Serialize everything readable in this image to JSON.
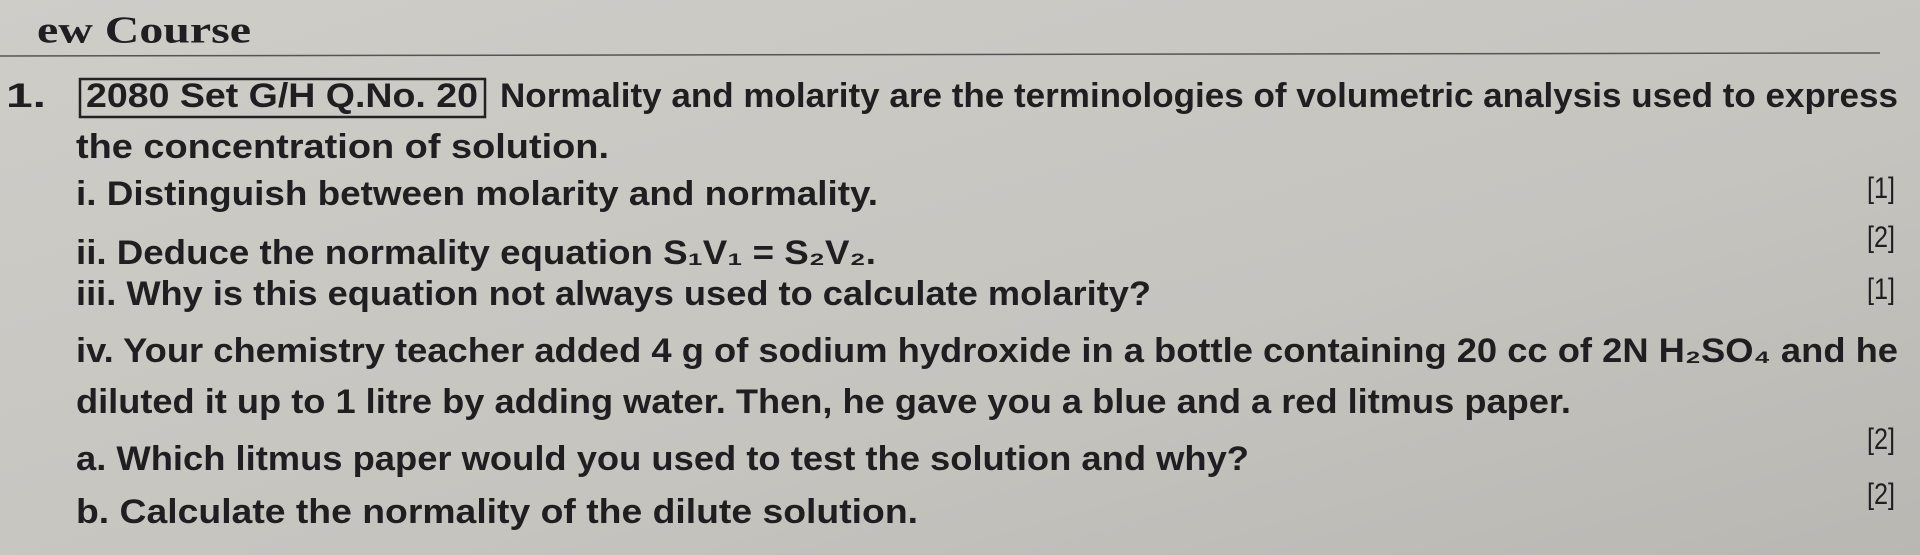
{
  "header": {
    "title": "ew Course"
  },
  "question": {
    "number": "1.",
    "tag": "2080 Set G/H Q.No. 20",
    "stem": [
      "Normality and molarity are the terminologies of volumetric analysis used to express",
      "the concentration of solution."
    ],
    "parts": [
      {
        "lines": [
          "i. Distinguish between molarity and normality."
        ],
        "marks": "[1]"
      },
      {
        "lines": [
          "ii. Deduce the normality equation S₁V₁ = S₂V₂."
        ],
        "marks": "[2]"
      },
      {
        "lines": [
          "iii. Why is this equation not always used to calculate molarity?"
        ],
        "marks": "[1]"
      },
      {
        "lines": [
          "iv. Your chemistry teacher added 4 g of sodium hydroxide in a bottle containing 20 cc of 2N H₂SO₄ and he",
          "diluted it up to 1 litre by adding water. Then, he gave you a blue and a red litmus paper."
        ]
      },
      {
        "lines": [
          "a. Which litmus paper would you used to test the solution and why?"
        ],
        "marks": "[2]"
      },
      {
        "lines": [
          "b. Calculate the normality of the dilute solution."
        ],
        "marks": "[2]"
      }
    ]
  }
}
